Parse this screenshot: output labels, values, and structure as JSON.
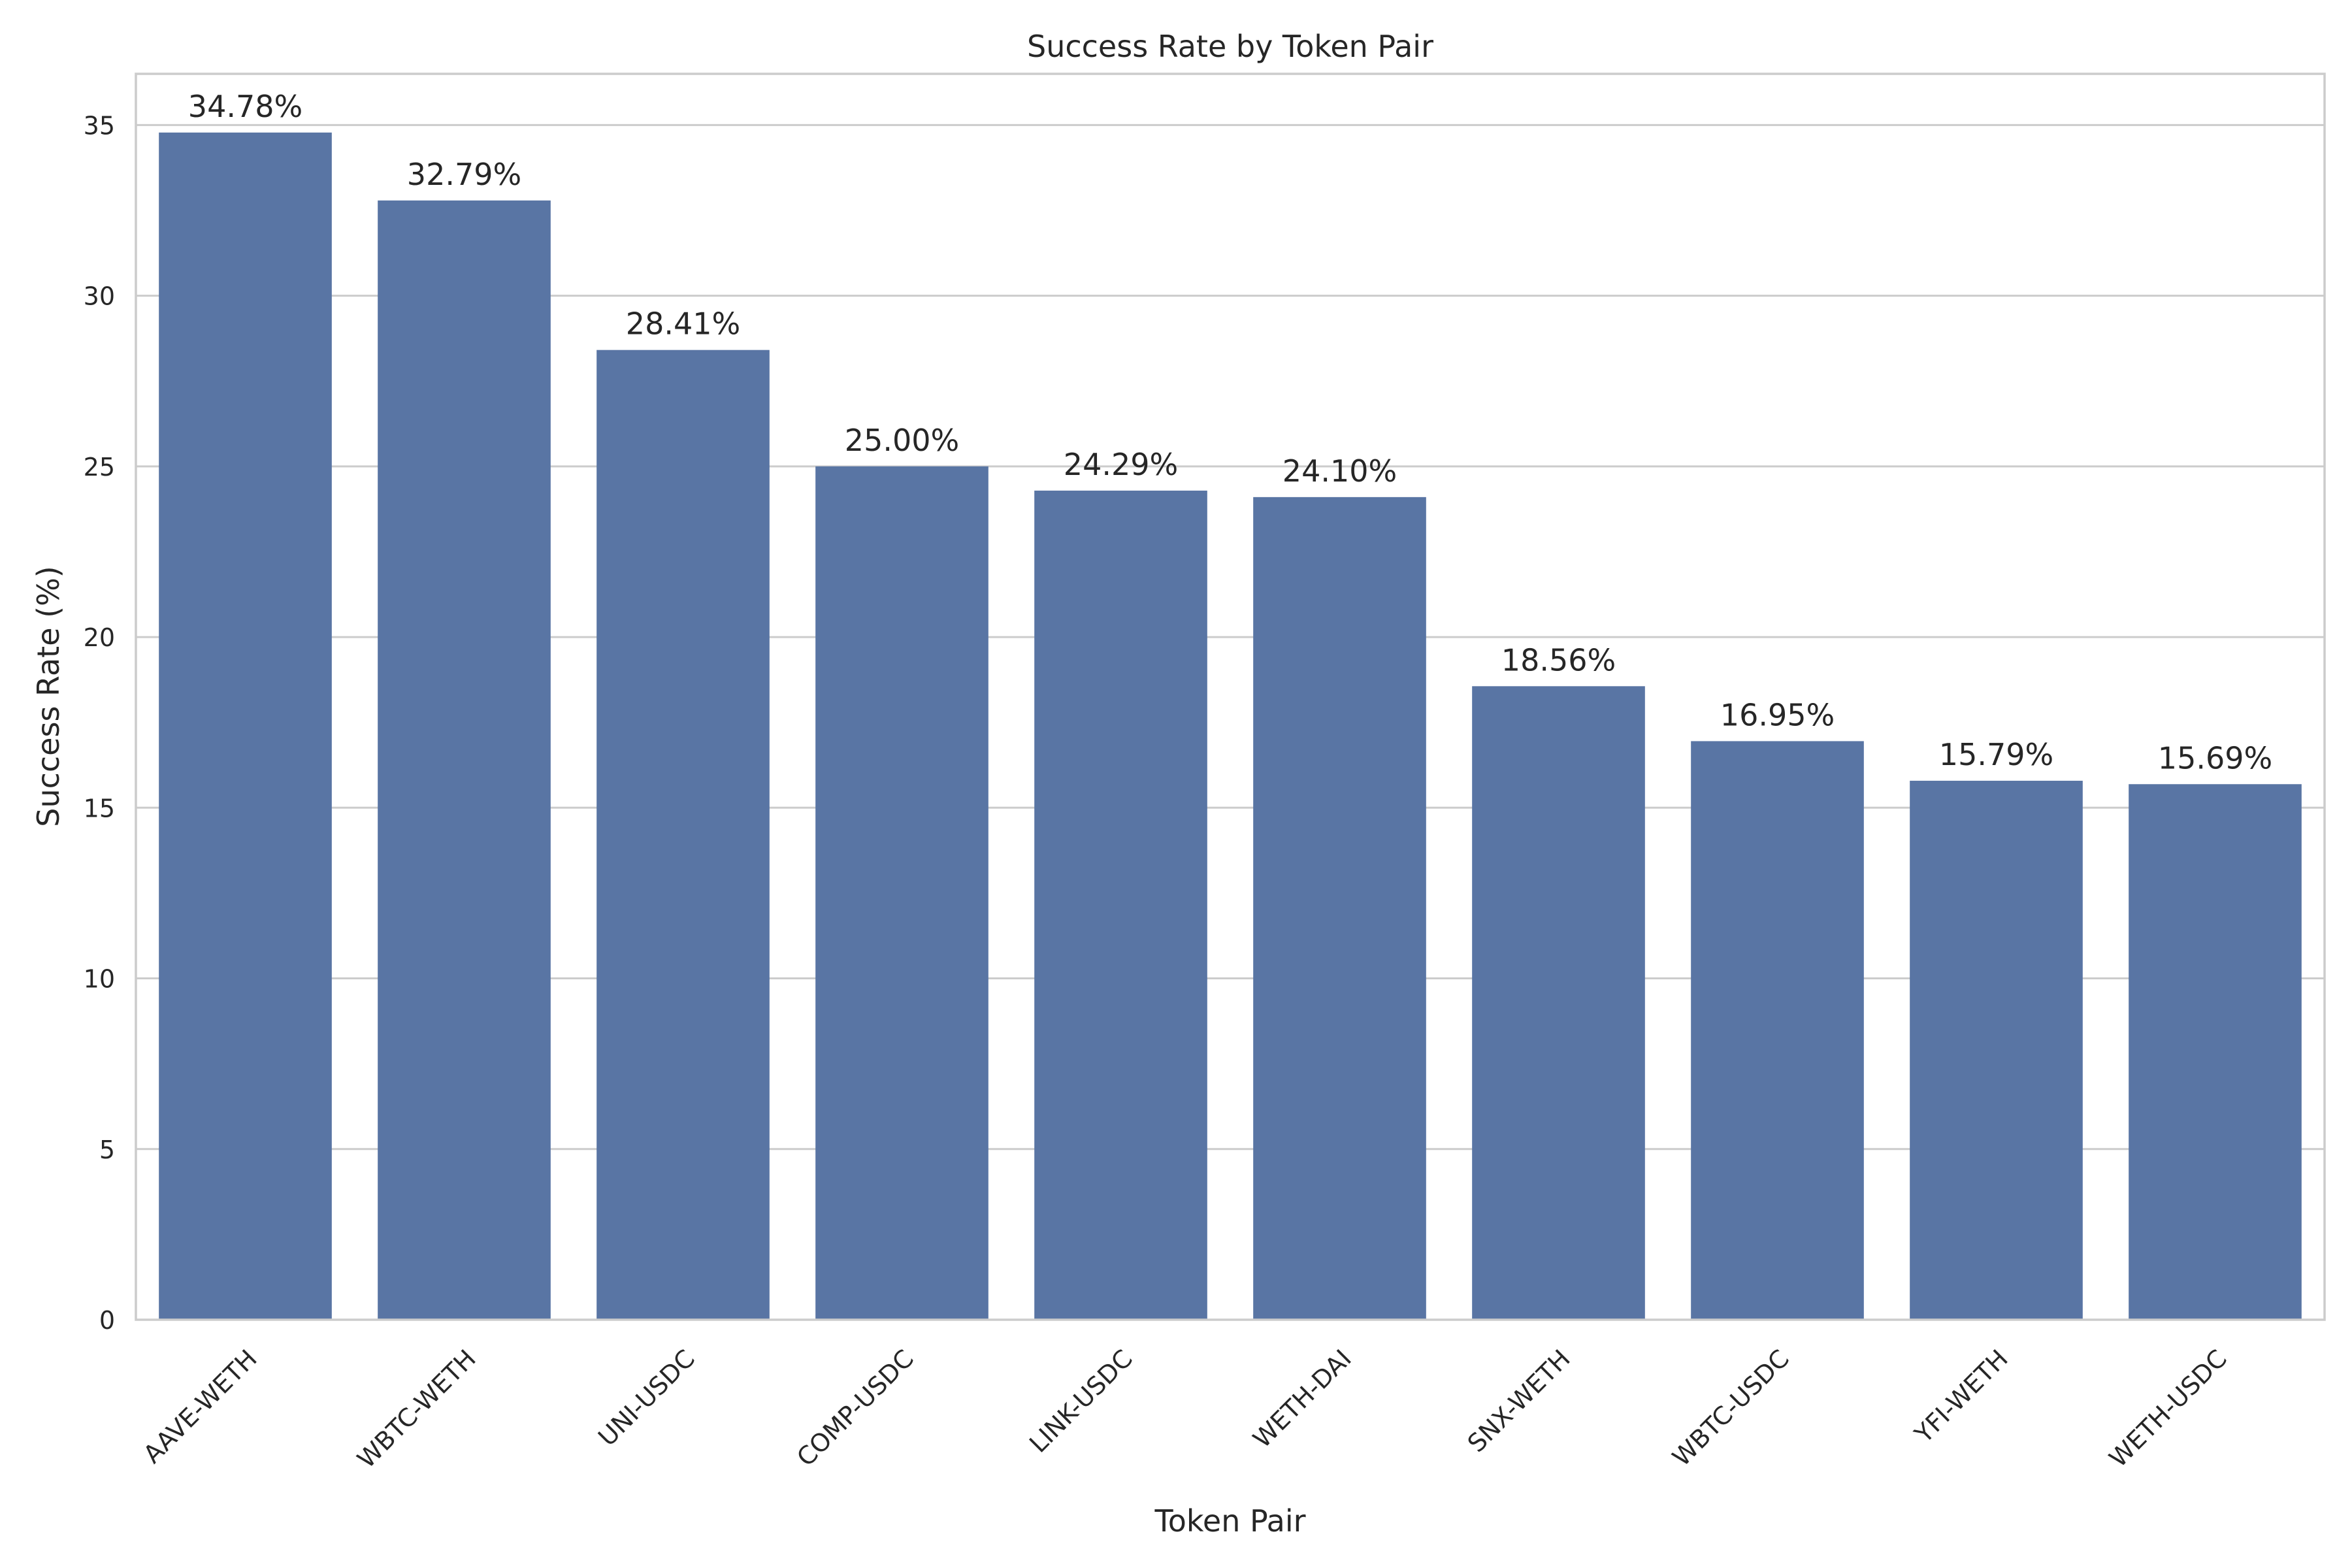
{
  "chart_data": {
    "type": "bar",
    "title": "Success Rate by Token Pair",
    "xlabel": "Token Pair",
    "ylabel": "Success Rate (%)",
    "categories": [
      "AAVE-WETH",
      "WBTC-WETH",
      "UNI-USDC",
      "COMP-USDC",
      "LINK-USDC",
      "WETH-DAI",
      "SNX-WETH",
      "WBTC-USDC",
      "YFI-WETH",
      "WETH-USDC"
    ],
    "values": [
      34.78,
      32.79,
      28.41,
      25.0,
      24.29,
      24.1,
      18.56,
      16.95,
      15.79,
      15.69
    ],
    "data_labels": [
      "34.78%",
      "32.79%",
      "28.41%",
      "25.00%",
      "24.29%",
      "24.10%",
      "18.56%",
      "16.95%",
      "15.79%",
      "15.69%"
    ],
    "yticks": [
      0,
      5,
      10,
      15,
      20,
      25,
      30,
      35
    ],
    "ylim": [
      0,
      36.5
    ],
    "grid": "horizontal",
    "bar_color": "#5975a4",
    "grid_color": "#cccccc",
    "text_color": "#262626"
  }
}
